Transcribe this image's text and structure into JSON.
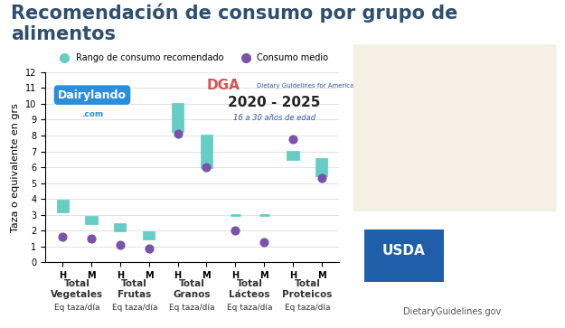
{
  "chart_data": {
    "type": "range_dot",
    "title": "Recomendación de consumo por grupo de alimentos",
    "ylabel": "Taza o equivalente en grs",
    "categories": [
      "H",
      "M",
      "H",
      "M",
      "H",
      "M",
      "H",
      "M",
      "H",
      "M"
    ],
    "groups": [
      {
        "name": "Total Vegetales",
        "unit": "Eq taza/día"
      },
      {
        "name": "Total Frutas",
        "unit": "Eq taza/día"
      },
      {
        "name": "Total Granos",
        "unit": "Eq taza/día"
      },
      {
        "name": "Total Lácteos",
        "unit": "Eq taza/día"
      },
      {
        "name": "Total Proteicos",
        "unit": "Eq taza/día"
      }
    ],
    "series": [
      {
        "name": "Rango de consumo recomendado",
        "type": "range",
        "color": "#66cdc4",
        "low": [
          3.2,
          2.5,
          2.0,
          1.5,
          8.3,
          6.0,
          3.0,
          3.0,
          6.5,
          5.5
        ],
        "high": [
          3.9,
          2.9,
          2.4,
          1.9,
          10.0,
          8.0,
          3.0,
          3.0,
          7.0,
          6.5
        ]
      },
      {
        "name": "Consumo medio",
        "type": "scatter",
        "color": "#7b52ab",
        "marker": "circle",
        "values": [
          1.6,
          1.5,
          1.1,
          0.9,
          8.1,
          6.0,
          2.0,
          1.3,
          7.8,
          5.3
        ]
      }
    ],
    "ylim": [
      0,
      12
    ],
    "yticks": [
      0,
      1,
      2,
      3,
      4,
      5,
      6,
      7,
      8,
      9,
      10,
      11,
      12
    ],
    "grid": true,
    "legend": "upper center",
    "annotations": [
      "Dairylando",
      ".com",
      "DGA",
      "Dietary Guidelines for Americans",
      "2020 - 2025",
      "16 a 30 años de edad",
      "USDA",
      "DietaryGuidelines.gov"
    ]
  }
}
